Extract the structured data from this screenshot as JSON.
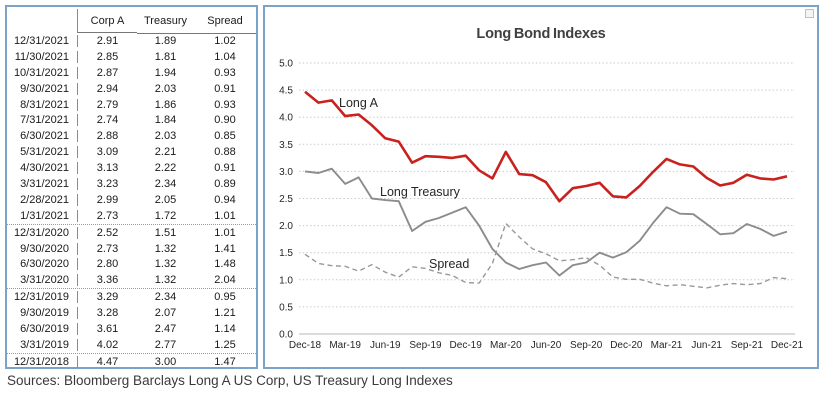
{
  "table": {
    "headers": [
      "",
      "Corp A",
      "Treasury",
      "Spread"
    ],
    "rows": [
      {
        "date": "12/31/2021",
        "corp_a": "2.91",
        "treasury": "1.89",
        "spread": "1.02",
        "separator_before": false
      },
      {
        "date": "11/30/2021",
        "corp_a": "2.85",
        "treasury": "1.81",
        "spread": "1.04",
        "separator_before": false
      },
      {
        "date": "10/31/2021",
        "corp_a": "2.87",
        "treasury": "1.94",
        "spread": "0.93",
        "separator_before": false
      },
      {
        "date": "9/30/2021",
        "corp_a": "2.94",
        "treasury": "2.03",
        "spread": "0.91",
        "separator_before": false
      },
      {
        "date": "8/31/2021",
        "corp_a": "2.79",
        "treasury": "1.86",
        "spread": "0.93",
        "separator_before": false
      },
      {
        "date": "7/31/2021",
        "corp_a": "2.74",
        "treasury": "1.84",
        "spread": "0.90",
        "separator_before": false
      },
      {
        "date": "6/30/2021",
        "corp_a": "2.88",
        "treasury": "2.03",
        "spread": "0.85",
        "separator_before": false
      },
      {
        "date": "5/31/2021",
        "corp_a": "3.09",
        "treasury": "2.21",
        "spread": "0.88",
        "separator_before": false
      },
      {
        "date": "4/30/2021",
        "corp_a": "3.13",
        "treasury": "2.22",
        "spread": "0.91",
        "separator_before": false
      },
      {
        "date": "3/31/2021",
        "corp_a": "3.23",
        "treasury": "2.34",
        "spread": "0.89",
        "separator_before": false
      },
      {
        "date": "2/28/2021",
        "corp_a": "2.99",
        "treasury": "2.05",
        "spread": "0.94",
        "separator_before": false
      },
      {
        "date": "1/31/2021",
        "corp_a": "2.73",
        "treasury": "1.72",
        "spread": "1.01",
        "separator_before": false
      },
      {
        "date": "12/31/2020",
        "corp_a": "2.52",
        "treasury": "1.51",
        "spread": "1.01",
        "separator_before": true
      },
      {
        "date": "9/30/2020",
        "corp_a": "2.73",
        "treasury": "1.32",
        "spread": "1.41",
        "separator_before": false
      },
      {
        "date": "6/30/2020",
        "corp_a": "2.80",
        "treasury": "1.32",
        "spread": "1.48",
        "separator_before": false
      },
      {
        "date": "3/31/2020",
        "corp_a": "3.36",
        "treasury": "1.32",
        "spread": "2.04",
        "separator_before": false
      },
      {
        "date": "12/31/2019",
        "corp_a": "3.29",
        "treasury": "2.34",
        "spread": "0.95",
        "separator_before": true
      },
      {
        "date": "9/30/2019",
        "corp_a": "3.28",
        "treasury": "2.07",
        "spread": "1.21",
        "separator_before": false
      },
      {
        "date": "6/30/2019",
        "corp_a": "3.61",
        "treasury": "2.47",
        "spread": "1.14",
        "separator_before": false
      },
      {
        "date": "3/31/2019",
        "corp_a": "4.02",
        "treasury": "2.77",
        "spread": "1.25",
        "separator_before": false
      },
      {
        "date": "12/31/2018",
        "corp_a": "4.47",
        "treasury": "3.00",
        "spread": "1.47",
        "separator_before": true
      }
    ]
  },
  "chart_data": {
    "type": "line",
    "title": "Long Bond Indexes",
    "xlabel": "",
    "ylabel": "",
    "ylim": [
      0.0,
      5.0
    ],
    "y_ticks": [
      5.0,
      4.5,
      4.0,
      3.5,
      3.0,
      2.5,
      2.0,
      1.5,
      1.0,
      0.5,
      0.0
    ],
    "x_tick_labels": [
      "Dec-18",
      "Mar-19",
      "Jun-19",
      "Sep-19",
      "Dec-19",
      "Mar-20",
      "Jun-20",
      "Sep-20",
      "Dec-20",
      "Mar-21",
      "Jun-21",
      "Sep-21",
      "Dec-21"
    ],
    "x": [
      "Dec-18",
      "Jan-19",
      "Feb-19",
      "Mar-19",
      "Apr-19",
      "May-19",
      "Jun-19",
      "Jul-19",
      "Aug-19",
      "Sep-19",
      "Oct-19",
      "Nov-19",
      "Dec-19",
      "Jan-20",
      "Feb-20",
      "Mar-20",
      "Apr-20",
      "May-20",
      "Jun-20",
      "Jul-20",
      "Aug-20",
      "Sep-20",
      "Oct-20",
      "Nov-20",
      "Dec-20",
      "Jan-21",
      "Feb-21",
      "Mar-21",
      "Apr-21",
      "May-21",
      "Jun-21",
      "Jul-21",
      "Aug-21",
      "Sep-21",
      "Oct-21",
      "Nov-21",
      "Dec-21"
    ],
    "grid": "horizontal-dotted",
    "legend": "inline-labels",
    "series": [
      {
        "name": "Long A",
        "color": "#c8221f",
        "style": "solid",
        "values": [
          4.47,
          4.27,
          4.31,
          4.02,
          4.05,
          3.85,
          3.61,
          3.55,
          3.16,
          3.28,
          3.27,
          3.25,
          3.29,
          3.02,
          2.87,
          3.36,
          2.95,
          2.93,
          2.8,
          2.45,
          2.69,
          2.73,
          2.79,
          2.54,
          2.52,
          2.73,
          2.99,
          3.23,
          3.13,
          3.09,
          2.88,
          2.74,
          2.79,
          2.94,
          2.87,
          2.85,
          2.91
        ]
      },
      {
        "name": "Long Treasury",
        "color": "#8c8c8c",
        "style": "solid",
        "values": [
          3.0,
          2.97,
          3.05,
          2.77,
          2.89,
          2.5,
          2.47,
          2.45,
          1.9,
          2.07,
          2.14,
          2.24,
          2.34,
          2.0,
          1.57,
          1.32,
          1.2,
          1.27,
          1.32,
          1.08,
          1.27,
          1.32,
          1.5,
          1.41,
          1.51,
          1.72,
          2.05,
          2.34,
          2.22,
          2.21,
          2.03,
          1.84,
          1.86,
          2.03,
          1.94,
          1.81,
          1.89
        ]
      },
      {
        "name": "Spread",
        "color": "#999999",
        "style": "dashed",
        "values": [
          1.47,
          1.3,
          1.26,
          1.25,
          1.16,
          1.28,
          1.14,
          1.05,
          1.24,
          1.21,
          1.13,
          1.08,
          0.95,
          0.94,
          1.3,
          2.04,
          1.79,
          1.57,
          1.48,
          1.35,
          1.37,
          1.41,
          1.27,
          1.05,
          1.01,
          1.01,
          0.94,
          0.89,
          0.91,
          0.88,
          0.85,
          0.9,
          0.93,
          0.91,
          0.93,
          1.04,
          1.02
        ]
      }
    ]
  },
  "footer": {
    "sources": "Sources: Bloomberg Barclays Long A US Corp, US Treasury Long Indexes"
  },
  "colors": {
    "panel_border": "#7ba3c7",
    "long_a_line": "#c8221f",
    "treasury_line": "#8c8c8c",
    "spread_line": "#999999",
    "gridline": "#c6ccd2",
    "title_text": "#404040"
  }
}
